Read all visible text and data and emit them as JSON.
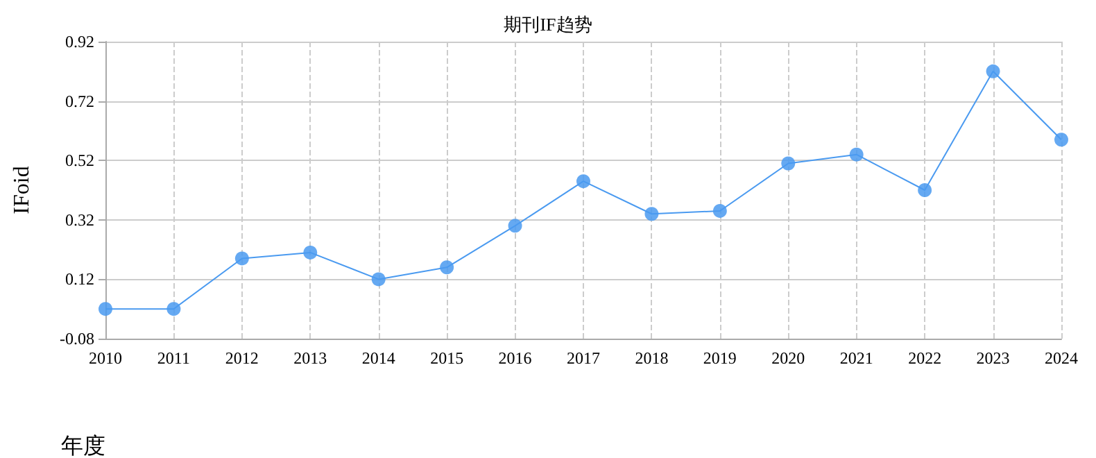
{
  "chart_data": {
    "type": "line",
    "title": "期刊IF趋势",
    "xlabel": "年度",
    "ylabel": "IFoid",
    "categories": [
      "2010",
      "2011",
      "2012",
      "2013",
      "2014",
      "2015",
      "2016",
      "2017",
      "2018",
      "2019",
      "2020",
      "2021",
      "2022",
      "2023",
      "2024"
    ],
    "series": [
      {
        "color": "#4a9af0",
        "values": [
          0.02,
          0.02,
          0.19,
          0.21,
          0.12,
          0.16,
          0.3,
          0.45,
          0.34,
          0.35,
          0.51,
          0.54,
          0.42,
          0.82,
          0.59
        ]
      }
    ],
    "ylim": [
      -0.08,
      0.92
    ],
    "yticks": [
      -0.08,
      0.12,
      0.32,
      0.52,
      0.72,
      0.92
    ],
    "grid": true,
    "marker": "circle",
    "line_style": "solid"
  }
}
